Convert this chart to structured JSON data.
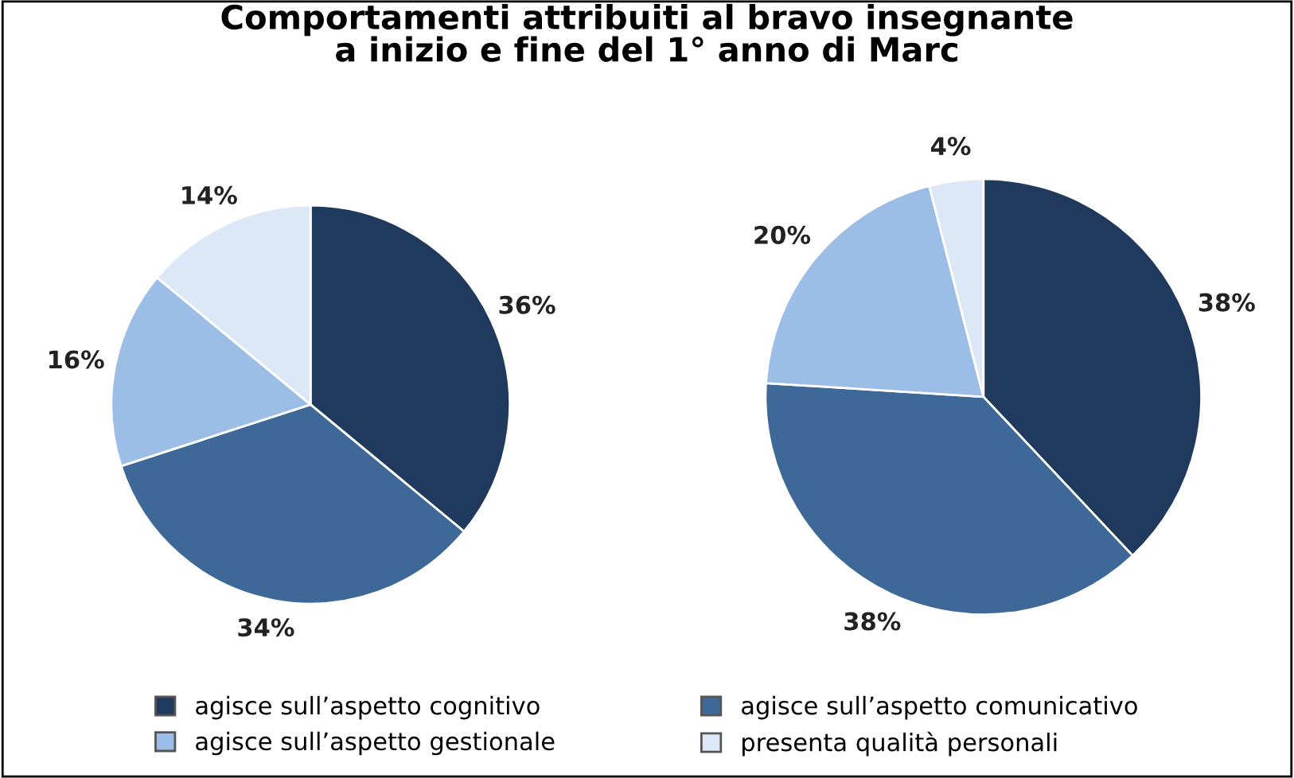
{
  "chart_data": [
    {
      "type": "pie",
      "title": "Comportamenti attribuiti al bravo insegnante\na inizio e fine del 1° anno di Marc",
      "categories": [
        "agisce sull’aspetto cognitivo",
        "agisce sull’aspetto comunicativo",
        "agisce sull’aspetto gestionale",
        "presenta qualità personali"
      ],
      "values": [
        36,
        34,
        16,
        14
      ],
      "value_labels": [
        "36%",
        "34%",
        "16%",
        "14%"
      ],
      "colors": [
        "#1f3a5c",
        "#3e6898",
        "#9bbde6",
        "#dce8f7"
      ],
      "legend": "bottom"
    },
    {
      "type": "pie",
      "categories": [
        null,
        null,
        null,
        null
      ],
      "values": [
        38,
        38,
        20,
        4
      ],
      "value_labels": [
        "38%",
        "38%",
        "20%",
        "4%"
      ],
      "colors": [
        "#1f3a5c",
        "#3e6898",
        "#9bbde6",
        "#dce8f7"
      ]
    }
  ]
}
